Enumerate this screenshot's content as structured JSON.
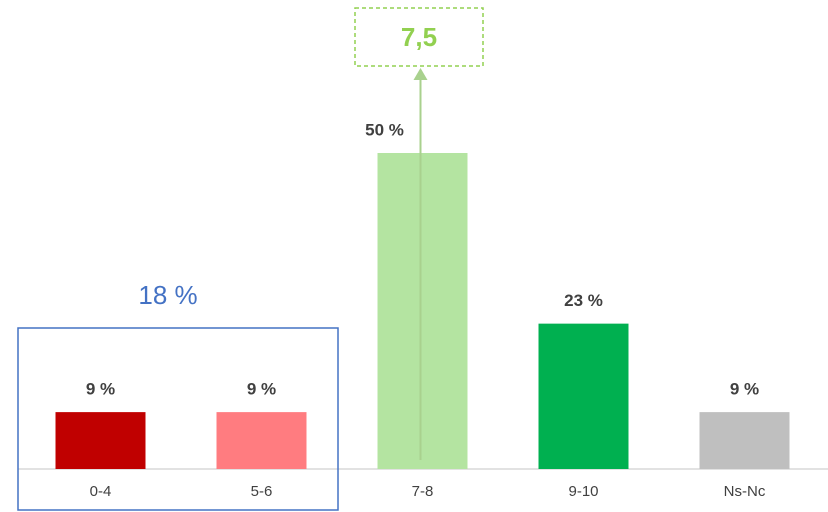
{
  "chart_data": {
    "type": "bar",
    "categories": [
      "0-4",
      "5-6",
      "7-8",
      "9-10",
      "Ns-Nc"
    ],
    "values": [
      9,
      9,
      50,
      23,
      9
    ],
    "value_labels": [
      "9 %",
      "9 %",
      "50 %",
      "23 %",
      "9 %"
    ],
    "colors": [
      "#c00000",
      "#ff7c80",
      "#b4e4a1",
      "#00b050",
      "#bfbfbf"
    ],
    "annotations": [
      {
        "text": "18 %",
        "color": "#4472c4"
      },
      {
        "text": "7,5",
        "color": "#92d050"
      }
    ]
  }
}
